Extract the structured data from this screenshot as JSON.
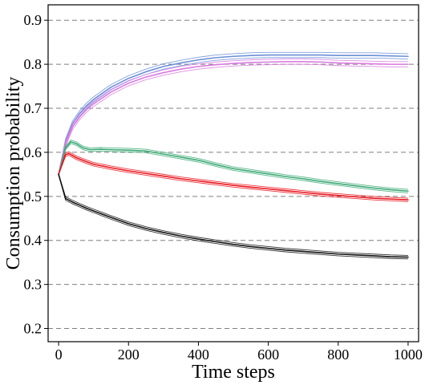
{
  "chart_data": {
    "type": "line",
    "title": "",
    "xlabel": "Time steps",
    "ylabel": "Consumption probability",
    "xlim": [
      -30,
      1030
    ],
    "ylim": [
      0.17,
      0.935
    ],
    "xticks": [
      0,
      200,
      400,
      600,
      800,
      1000
    ],
    "xtick_labels": [
      "0",
      "200",
      "400",
      "600",
      "800",
      "1000"
    ],
    "yticks": [
      0.2,
      0.3,
      0.4,
      0.5,
      0.6,
      0.7,
      0.8,
      0.9
    ],
    "ytick_labels": [
      "0.2",
      "0.3",
      "0.4",
      "0.5",
      "0.6",
      "0.7",
      "0.8",
      "0.9"
    ],
    "grid": "horizontal dashed",
    "legend": "none",
    "series": [
      {
        "color": "#6a8fd8",
        "band": 0.006,
        "x": [
          0,
          20,
          40,
          60,
          80,
          100,
          150,
          200,
          250,
          300,
          350,
          400,
          450,
          500,
          550,
          600,
          650,
          700,
          750,
          800,
          850,
          900,
          950,
          1000
        ],
        "y": [
          0.55,
          0.625,
          0.665,
          0.688,
          0.706,
          0.72,
          0.748,
          0.768,
          0.783,
          0.795,
          0.803,
          0.81,
          0.815,
          0.818,
          0.82,
          0.821,
          0.821,
          0.821,
          0.821,
          0.82,
          0.82,
          0.82,
          0.819,
          0.818
        ]
      },
      {
        "color": "#d97ae0",
        "band": 0.006,
        "x": [
          0,
          20,
          40,
          60,
          80,
          100,
          150,
          200,
          250,
          300,
          350,
          400,
          450,
          500,
          550,
          600,
          650,
          700,
          750,
          800,
          850,
          900,
          950,
          1000
        ],
        "y": [
          0.55,
          0.62,
          0.658,
          0.68,
          0.697,
          0.71,
          0.737,
          0.757,
          0.771,
          0.781,
          0.789,
          0.795,
          0.799,
          0.802,
          0.804,
          0.805,
          0.806,
          0.806,
          0.805,
          0.803,
          0.802,
          0.801,
          0.8,
          0.8
        ]
      },
      {
        "color": "#3aa874",
        "band": 0.004,
        "x": [
          0,
          20,
          35,
          50,
          70,
          90,
          120,
          150,
          200,
          250,
          300,
          350,
          400,
          450,
          500,
          550,
          600,
          650,
          700,
          750,
          800,
          850,
          900,
          950,
          1000
        ],
        "y": [
          0.55,
          0.61,
          0.624,
          0.62,
          0.61,
          0.606,
          0.607,
          0.606,
          0.605,
          0.603,
          0.596,
          0.589,
          0.582,
          0.572,
          0.563,
          0.557,
          0.551,
          0.545,
          0.54,
          0.534,
          0.529,
          0.524,
          0.519,
          0.515,
          0.512
        ]
      },
      {
        "color": "#e8141c",
        "band": 0.004,
        "x": [
          0,
          20,
          30,
          50,
          75,
          100,
          150,
          200,
          250,
          300,
          350,
          400,
          450,
          500,
          550,
          600,
          650,
          700,
          750,
          800,
          850,
          900,
          950,
          1000
        ],
        "y": [
          0.55,
          0.595,
          0.597,
          0.588,
          0.58,
          0.573,
          0.565,
          0.558,
          0.552,
          0.546,
          0.54,
          0.535,
          0.53,
          0.525,
          0.521,
          0.517,
          0.513,
          0.509,
          0.505,
          0.502,
          0.499,
          0.496,
          0.494,
          0.492
        ]
      },
      {
        "color": "#111111",
        "band": 0.004,
        "x": [
          0,
          20,
          40,
          60,
          80,
          100,
          150,
          200,
          250,
          300,
          350,
          400,
          450,
          500,
          550,
          600,
          650,
          700,
          750,
          800,
          850,
          900,
          950,
          1000
        ],
        "y": [
          0.55,
          0.495,
          0.487,
          0.48,
          0.473,
          0.467,
          0.452,
          0.438,
          0.427,
          0.418,
          0.41,
          0.403,
          0.397,
          0.391,
          0.386,
          0.382,
          0.378,
          0.375,
          0.372,
          0.369,
          0.367,
          0.365,
          0.363,
          0.362
        ]
      }
    ]
  }
}
